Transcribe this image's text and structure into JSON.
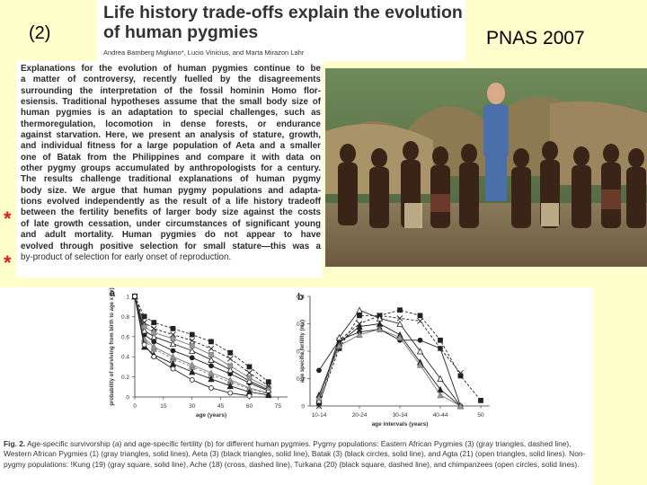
{
  "slide": {
    "number": "(2)",
    "journal": "PNAS 2007"
  },
  "paper": {
    "title_line1": "Life history trade-offs explain the evolution",
    "title_line2": "of human pygmies",
    "authors": "Andrea Bamberg Migliano*, Lucio Vinicius, and Marta Mirazon Lahr",
    "abstract_lines": [
      "Explanations for the evolution of human pygmies continue to be",
      "a matter of controversy, recently fuelled by the disagreements",
      "surrounding the interpretation of the fossil hominin Homo flor-",
      "esiensis. Traditional hypotheses assume that the small body size of",
      "human pygmies is an adaptation to special challenges, such as",
      "thermoregulation, locomotion in dense forests, or endurance",
      "against starvation. Here, we present an analysis of stature, growth,",
      "and individual fitness for a large population of Aeta and a smaller",
      "one of Batak from the Philippines and compare it with data on",
      "other pygmy groups accumulated by anthropologists for a century.",
      "The results challenge traditional explanations of human pygmy",
      "body size. We argue that human pygmy populations and adapta-",
      "tions evolved independently as the result of a life history tradeoff",
      "between the fertility benefits of larger body size against the costs",
      "of late growth cessation, under circumstances of significant young",
      "and adult mortality. Human pygmies do not appear to have",
      "evolved through positive selection for small stature—this was a",
      "by-product of selection for early onset of reproduction."
    ],
    "marker": "*"
  },
  "figure": {
    "caption_label": "Fig. 2.",
    "caption_text": "Age-specific survivorship (a) and age-specific fertility (b) for different human pygmies. Pygmy populations: Eastern African Pygmies (3) (gray triangles, dashed line), Western African Pygmies (1) (gray triangles, solid lines), Aeta (3) (black triangles, solid line), Batak (3) (black circles, solid line), and Agta (21) (open triangles, solid lines). Non-pygmy populations: !Kung (19) (gray square, solid line), Ache (18) (cross, dashed line), Turkana (20) (black square, dashed line), and chimpanzees (open circles, solid lines)."
  },
  "chart_data": [
    {
      "type": "line",
      "panel": "a",
      "ylabel": "probability of surviving from birth to age x (lx)",
      "xlabel": "age (years)",
      "xlim": [
        0,
        80
      ],
      "ylim": [
        0,
        1
      ],
      "x_ticks": [
        "0",
        "15",
        "30",
        "45",
        "60",
        "75"
      ],
      "y_ticks": [
        "0",
        "0.2",
        "0.4",
        "0.6",
        "0.8",
        "1"
      ],
      "series": [
        {
          "marker": "gray-triangle",
          "dash": true,
          "x": [
            0,
            5,
            10,
            20,
            30,
            40,
            50,
            60,
            70
          ],
          "y": [
            1,
            0.56,
            0.48,
            0.38,
            0.3,
            0.22,
            0.15,
            0.08,
            0.03
          ]
        },
        {
          "marker": "gray-triangle",
          "dash": false,
          "x": [
            0,
            5,
            10,
            20,
            30,
            40,
            50,
            60,
            70
          ],
          "y": [
            1,
            0.58,
            0.5,
            0.4,
            0.32,
            0.24,
            0.17,
            0.09,
            0.04
          ]
        },
        {
          "marker": "black-triangle",
          "dash": false,
          "x": [
            0,
            5,
            10,
            20,
            30,
            40,
            50,
            60,
            70
          ],
          "y": [
            1,
            0.5,
            0.42,
            0.33,
            0.25,
            0.18,
            0.11,
            0.05,
            0.02
          ]
        },
        {
          "marker": "black-circle",
          "dash": false,
          "x": [
            0,
            5,
            10,
            20,
            30,
            40,
            50,
            60,
            70
          ],
          "y": [
            1,
            0.62,
            0.55,
            0.46,
            0.39,
            0.31,
            0.23,
            0.14,
            0.06
          ]
        },
        {
          "marker": "open-triangle",
          "dash": false,
          "x": [
            0,
            5,
            10,
            20,
            30,
            40,
            50,
            60,
            70
          ],
          "y": [
            1,
            0.66,
            0.6,
            0.53,
            0.46,
            0.37,
            0.27,
            0.16,
            0.07
          ]
        },
        {
          "marker": "gray-square",
          "dash": false,
          "x": [
            0,
            5,
            10,
            20,
            30,
            40,
            50,
            60,
            70
          ],
          "y": [
            1,
            0.7,
            0.64,
            0.58,
            0.51,
            0.42,
            0.31,
            0.19,
            0.09
          ]
        },
        {
          "marker": "cross",
          "dash": true,
          "x": [
            0,
            5,
            10,
            20,
            30,
            40,
            50,
            60,
            70
          ],
          "y": [
            1,
            0.74,
            0.68,
            0.62,
            0.56,
            0.48,
            0.38,
            0.24,
            0.11
          ]
        },
        {
          "marker": "black-square",
          "dash": true,
          "x": [
            0,
            5,
            10,
            20,
            30,
            40,
            50,
            60,
            70
          ],
          "y": [
            1,
            0.8,
            0.74,
            0.68,
            0.62,
            0.55,
            0.44,
            0.3,
            0.15
          ]
        },
        {
          "marker": "open-circle",
          "dash": false,
          "x": [
            0,
            5,
            10,
            20,
            30,
            40,
            50,
            60
          ],
          "y": [
            1,
            0.52,
            0.4,
            0.28,
            0.17,
            0.09,
            0.04,
            0.01
          ]
        }
      ]
    },
    {
      "type": "line",
      "panel": "b",
      "ylabel": "age specific fertility (mx)",
      "xlabel": "age intervals (years)",
      "ylim": [
        0,
        0.4
      ],
      "categories": [
        "10-14",
        "15-19",
        "20-24",
        "25-29",
        "30-34",
        "35-39",
        "40-44",
        "45-49",
        "50"
      ],
      "x_ticks": [
        "10-14",
        "20-24",
        "30-34",
        "40-44",
        "50"
      ],
      "y_ticks": [
        "0",
        "0.1",
        "0.2",
        "0.3",
        "0.4"
      ],
      "series": [
        {
          "marker": "black-circle",
          "dash": false,
          "values": [
            0.13,
            0.24,
            0.27,
            0.28,
            0.24,
            0.24,
            0.21,
            0.0,
            null
          ]
        },
        {
          "marker": "black-square",
          "dash": true,
          "values": [
            0.01,
            0.21,
            0.33,
            0.33,
            0.35,
            0.33,
            0.24,
            0.11,
            0.02
          ]
        },
        {
          "marker": "cross",
          "dash": true,
          "values": [
            0.0,
            0.24,
            0.3,
            0.33,
            0.32,
            0.31,
            0.21,
            0.12,
            null
          ]
        },
        {
          "marker": "open-triangle",
          "dash": false,
          "values": [
            0.02,
            0.25,
            0.35,
            0.32,
            0.3,
            0.2,
            0.1,
            0.0,
            null
          ]
        },
        {
          "marker": "black-triangle",
          "dash": false,
          "values": [
            0.04,
            0.23,
            0.29,
            0.3,
            0.26,
            0.16,
            0.06,
            0.0,
            null
          ]
        },
        {
          "marker": "gray-triangle",
          "dash": false,
          "values": [
            0.03,
            0.22,
            0.26,
            0.28,
            0.25,
            0.15,
            0.04,
            0.0,
            null
          ]
        }
      ]
    }
  ]
}
